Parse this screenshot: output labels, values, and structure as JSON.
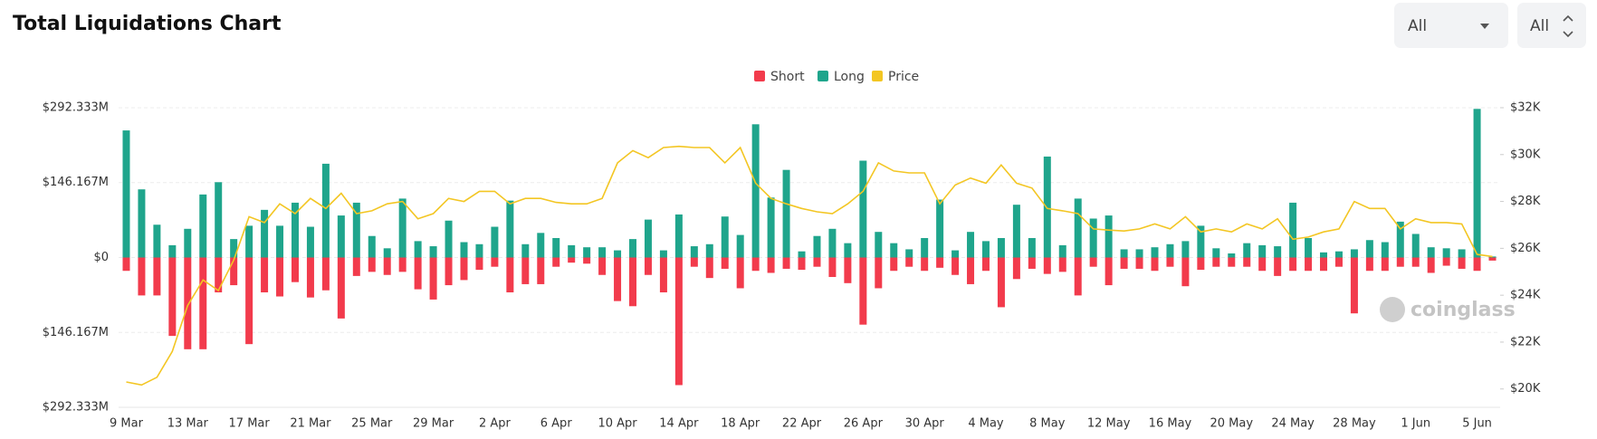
{
  "header": {
    "title": "Total Liquidations Chart",
    "filters": [
      "All",
      "All"
    ]
  },
  "watermark": "coinglass",
  "chart_data": {
    "type": "bar",
    "categories": [
      "9 Mar",
      null,
      null,
      null,
      "13 Mar",
      null,
      null,
      null,
      "17 Mar",
      null,
      null,
      null,
      "21 Mar",
      null,
      null,
      null,
      "25 Mar",
      null,
      null,
      null,
      "29 Mar",
      null,
      null,
      null,
      "2 Apr",
      null,
      null,
      null,
      "6 Apr",
      null,
      null,
      null,
      "10 Apr",
      null,
      null,
      null,
      "14 Apr",
      null,
      null,
      null,
      "18 Apr",
      null,
      null,
      null,
      "22 Apr",
      null,
      null,
      null,
      "26 Apr",
      null,
      null,
      null,
      "30 Apr",
      null,
      null,
      null,
      "4 May",
      null,
      null,
      null,
      "8 May",
      null,
      null,
      null,
      "12 May",
      null,
      null,
      null,
      "16 May",
      null,
      null,
      null,
      "20 May",
      null,
      null,
      null,
      "24 May",
      null,
      null,
      null,
      "28 May",
      null,
      null,
      null,
      "1 Jun",
      null,
      null,
      null,
      "5 Jun",
      null
    ],
    "series": [
      {
        "name": "Short",
        "color": "#f23b4c",
        "values": [
          -26,
          -74,
          -74,
          -153,
          -179,
          -179,
          -68,
          -54,
          -169,
          -68,
          -76,
          -48,
          -78,
          -64,
          -119,
          -36,
          -28,
          -34,
          -28,
          -62,
          -82,
          -54,
          -44,
          -24,
          -18,
          -68,
          -52,
          -52,
          -18,
          -10,
          -12,
          -34,
          -85,
          -95,
          -34,
          -68,
          -249,
          -18,
          -40,
          -22,
          -60,
          -26,
          -30,
          -22,
          -24,
          -18,
          -38,
          -50,
          -131,
          -60,
          -26,
          -18,
          -26,
          -20,
          -34,
          -52,
          -26,
          -97,
          -42,
          -22,
          -32,
          -28,
          -74,
          -18,
          -54,
          -22,
          -22,
          -26,
          -18,
          -56,
          -24,
          -18,
          -18,
          -18,
          -26,
          -36,
          -26,
          -26,
          -26,
          -18,
          -109,
          -26,
          -26,
          -18,
          -18,
          -30,
          -16,
          -22,
          -26,
          -6
        ]
      },
      {
        "name": "Long",
        "color": "#1fa58c",
        "values": [
          248,
          133,
          64,
          24,
          56,
          123,
          147,
          36,
          62,
          93,
          62,
          107,
          60,
          183,
          82,
          107,
          42,
          18,
          115,
          32,
          22,
          72,
          30,
          26,
          60,
          111,
          26,
          48,
          38,
          24,
          20,
          20,
          14,
          36,
          74,
          14,
          84,
          22,
          26,
          80,
          44,
          260,
          117,
          171,
          12,
          42,
          56,
          28,
          189,
          50,
          28,
          16,
          38,
          113,
          14,
          50,
          32,
          38,
          103,
          38,
          197,
          24,
          115,
          76,
          82,
          16,
          16,
          20,
          26,
          32,
          62,
          18,
          8,
          28,
          24,
          22,
          107,
          38,
          10,
          12,
          16,
          34,
          30,
          70,
          46,
          20,
          18,
          16,
          290,
          2
        ]
      },
      {
        "name": "Price",
        "color": "#f3c623",
        "axis": "y2",
        "values": [
          20300,
          20170,
          20500,
          21600,
          23560,
          24650,
          24200,
          25500,
          27350,
          27100,
          27900,
          27480,
          28130,
          27700,
          28350,
          27480,
          27600,
          27900,
          28000,
          27260,
          27480,
          28130,
          28000,
          28430,
          28430,
          27900,
          28130,
          28130,
          27960,
          27900,
          27900,
          28130,
          29650,
          30170,
          29870,
          30300,
          30350,
          30300,
          30300,
          29650,
          30300,
          28780,
          28130,
          27900,
          27700,
          27560,
          27480,
          27900,
          28430,
          29650,
          29300,
          29220,
          29220,
          27900,
          28700,
          29000,
          28780,
          29560,
          28780,
          28570,
          27700,
          27600,
          27480,
          26830,
          26780,
          26740,
          26830,
          27040,
          26830,
          27350,
          26700,
          26830,
          26700,
          27040,
          26830,
          27260,
          26390,
          26480,
          26700,
          26830,
          28000,
          27700,
          27700,
          26830,
          27260,
          27100,
          27100,
          27040,
          25740,
          25650
        ]
      }
    ],
    "ylim": [
      -292.333,
      292.333
    ],
    "yticks": [
      {
        "value": -292.333,
        "label": "$292.333M"
      },
      {
        "value": -146.167,
        "label": "$146.167M"
      },
      {
        "value": 0,
        "label": "$0"
      },
      {
        "value": 146.167,
        "label": "$146.167M"
      },
      {
        "value": 292.333,
        "label": "$292.333M"
      }
    ],
    "y2lim": [
      19217,
      32000
    ],
    "y2ticks": [
      {
        "value": 20000,
        "label": "$20K"
      },
      {
        "value": 22000,
        "label": "$22K"
      },
      {
        "value": 24000,
        "label": "$24K"
      },
      {
        "value": 26000,
        "label": "$26K"
      },
      {
        "value": 28000,
        "label": "$28K"
      },
      {
        "value": 30000,
        "label": "$30K"
      },
      {
        "value": 32000,
        "label": "$32K"
      }
    ],
    "grid": true,
    "legend": "top"
  }
}
